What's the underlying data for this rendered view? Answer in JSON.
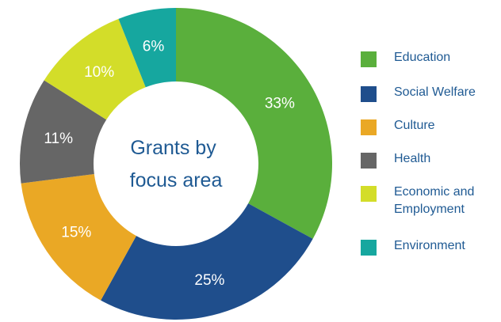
{
  "chart_data": {
    "type": "pie",
    "donut": true,
    "title": "Grants by focus area",
    "title_lines": [
      "Grants by",
      "focus area"
    ],
    "categories": [
      "Education",
      "Social Welfare",
      "Culture",
      "Health",
      "Economic and Employment",
      "Environment"
    ],
    "label_lines": [
      [
        "Education"
      ],
      [
        "Social Welfare"
      ],
      [
        "Culture"
      ],
      [
        "Health"
      ],
      [
        "Economic and",
        "Employment"
      ],
      [
        "Environment"
      ]
    ],
    "values": [
      33,
      25,
      15,
      11,
      10,
      6
    ],
    "value_labels": [
      "33%",
      "25%",
      "15%",
      "11%",
      "10%",
      "6%"
    ],
    "colors": [
      "#5aaf3c",
      "#1f4e8c",
      "#eaa825",
      "#666666",
      "#d3dd29",
      "#16a79f"
    ],
    "legend_position": "right"
  }
}
